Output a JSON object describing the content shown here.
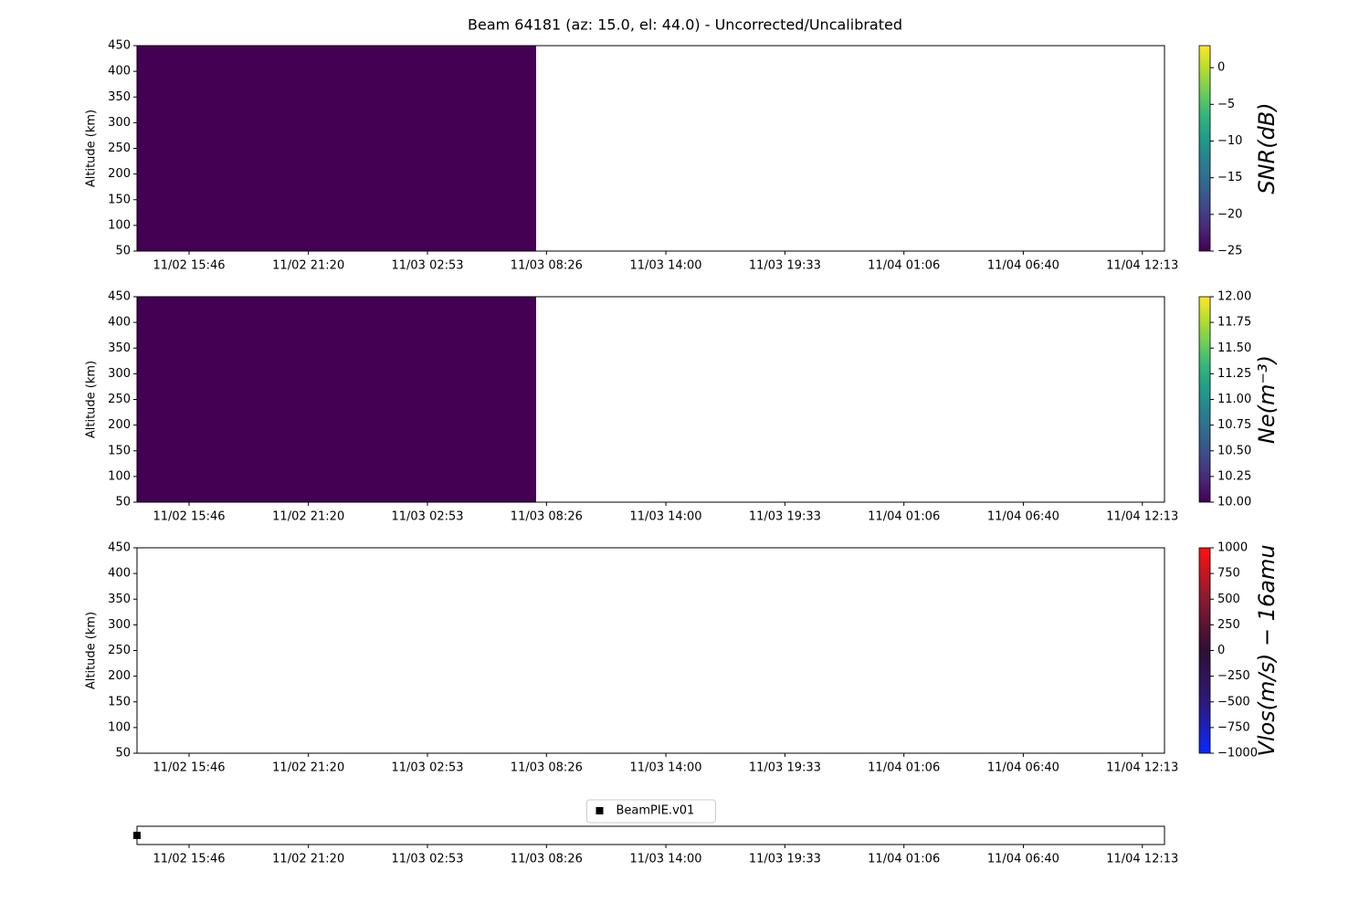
{
  "title": "Beam 64181 (az: 15.0, el: 44.0) - Uncorrected/Uncalibrated",
  "chart_data": [
    {
      "type": "heatmap",
      "ylabel": "Altitude (km)",
      "xlim": [
        13.34,
        61.25
      ],
      "xticks": [
        {
          "value": 15.767,
          "label": "11/02 15:46"
        },
        {
          "value": 21.333,
          "label": "11/02 21:20"
        },
        {
          "value": 26.883,
          "label": "11/03 02:53"
        },
        {
          "value": 32.433,
          "label": "11/03 08:26"
        },
        {
          "value": 38.0,
          "label": "11/03 14:00"
        },
        {
          "value": 43.55,
          "label": "11/03 19:33"
        },
        {
          "value": 49.1,
          "label": "11/04 01:06"
        },
        {
          "value": 54.667,
          "label": "11/04 06:40"
        },
        {
          "value": 60.217,
          "label": "11/04 12:13"
        }
      ],
      "ylim": [
        50,
        450
      ],
      "yticks": [
        50,
        100,
        150,
        200,
        250,
        300,
        350,
        400,
        450
      ],
      "x_edges": [
        13.34,
        31.95
      ],
      "y_edges": [
        50,
        450
      ],
      "values": [
        [
          -25
        ]
      ],
      "colorbar": {
        "label": "SNR(dB)",
        "clim": [
          -25,
          3
        ],
        "cticks": [
          {
            "value": -25,
            "label": "−25"
          },
          {
            "value": -20,
            "label": "−20"
          },
          {
            "value": -15,
            "label": "−15"
          },
          {
            "value": -10,
            "label": "−10"
          },
          {
            "value": -5,
            "label": "−5"
          },
          0
        ],
        "colormap": [
          "#440154",
          "#482878",
          "#3e4989",
          "#31688e",
          "#26828e",
          "#1f9e89",
          "#35b779",
          "#6ece58",
          "#b5de2b",
          "#fde725"
        ]
      }
    },
    {
      "type": "heatmap",
      "ylabel": "Altitude (km)",
      "xlim": [
        13.34,
        61.25
      ],
      "xticks": [
        {
          "value": 15.767,
          "label": "11/02 15:46"
        },
        {
          "value": 21.333,
          "label": "11/02 21:20"
        },
        {
          "value": 26.883,
          "label": "11/03 02:53"
        },
        {
          "value": 32.433,
          "label": "11/03 08:26"
        },
        {
          "value": 38.0,
          "label": "11/03 14:00"
        },
        {
          "value": 43.55,
          "label": "11/03 19:33"
        },
        {
          "value": 49.1,
          "label": "11/04 01:06"
        },
        {
          "value": 54.667,
          "label": "11/04 06:40"
        },
        {
          "value": 60.217,
          "label": "11/04 12:13"
        }
      ],
      "ylim": [
        50,
        450
      ],
      "yticks": [
        50,
        100,
        150,
        200,
        250,
        300,
        350,
        400,
        450
      ],
      "x_edges": [
        13.34,
        31.95
      ],
      "y_edges": [
        50,
        450
      ],
      "values": [
        [
          10
        ]
      ],
      "colorbar": {
        "label": "Ne(m⁻³)",
        "clim": [
          10,
          12
        ],
        "cticks": [
          {
            "value": 10,
            "label": "10.00"
          },
          {
            "value": 10.25,
            "label": "10.25"
          },
          {
            "value": 10.5,
            "label": "10.50"
          },
          {
            "value": 10.75,
            "label": "10.75"
          },
          {
            "value": 11,
            "label": "11.00"
          },
          {
            "value": 11.25,
            "label": "11.25"
          },
          {
            "value": 11.5,
            "label": "11.50"
          },
          {
            "value": 11.75,
            "label": "11.75"
          },
          {
            "value": 12,
            "label": "12.00"
          }
        ],
        "colormap": [
          "#440154",
          "#482878",
          "#3e4989",
          "#31688e",
          "#26828e",
          "#1f9e89",
          "#35b779",
          "#6ece58",
          "#b5de2b",
          "#fde725"
        ]
      }
    },
    {
      "type": "heatmap",
      "ylabel": "Altitude (km)",
      "xlim": [
        13.34,
        61.25
      ],
      "xticks": [
        {
          "value": 15.767,
          "label": "11/02 15:46"
        },
        {
          "value": 21.333,
          "label": "11/02 21:20"
        },
        {
          "value": 26.883,
          "label": "11/03 02:53"
        },
        {
          "value": 32.433,
          "label": "11/03 08:26"
        },
        {
          "value": 38.0,
          "label": "11/03 14:00"
        },
        {
          "value": 43.55,
          "label": "11/03 19:33"
        },
        {
          "value": 49.1,
          "label": "11/04 01:06"
        },
        {
          "value": 54.667,
          "label": "11/04 06:40"
        },
        {
          "value": 60.217,
          "label": "11/04 12:13"
        }
      ],
      "ylim": [
        50,
        450
      ],
      "yticks": [
        50,
        100,
        150,
        200,
        250,
        300,
        350,
        400,
        450
      ],
      "x_edges": [],
      "y_edges": [],
      "values": [],
      "colorbar": {
        "label": "Vlos(m/s) − 16amu",
        "clim": [
          -1000,
          1000
        ],
        "cticks": [
          {
            "value": -1000,
            "label": "−1000"
          },
          {
            "value": -750,
            "label": "−750"
          },
          {
            "value": -500,
            "label": "−500"
          },
          {
            "value": -250,
            "label": "−250"
          },
          0,
          250,
          500,
          750,
          1000
        ],
        "colormap": [
          "#0a28ff",
          "#2d1a7a",
          "#2e0f35",
          "#8a1a30",
          "#ff1010"
        ]
      }
    },
    {
      "type": "scatter",
      "xlim": [
        13.34,
        61.25
      ],
      "xticks": [
        {
          "value": 15.767,
          "label": "11/02 15:46"
        },
        {
          "value": 21.333,
          "label": "11/02 21:20"
        },
        {
          "value": 26.883,
          "label": "11/03 02:53"
        },
        {
          "value": 32.433,
          "label": "11/03 08:26"
        },
        {
          "value": 38.0,
          "label": "11/03 14:00"
        },
        {
          "value": 43.55,
          "label": "11/03 19:33"
        },
        {
          "value": 49.1,
          "label": "11/04 01:06"
        },
        {
          "value": 54.667,
          "label": "11/04 06:40"
        },
        {
          "value": 60.217,
          "label": "11/04 12:13"
        }
      ],
      "ylim": [
        -1,
        1
      ],
      "legend": "upper center",
      "series": [
        {
          "name": "BeamPIE.v01",
          "color": "#000000",
          "x": [
            13.34
          ],
          "values": [
            0
          ]
        }
      ]
    }
  ]
}
